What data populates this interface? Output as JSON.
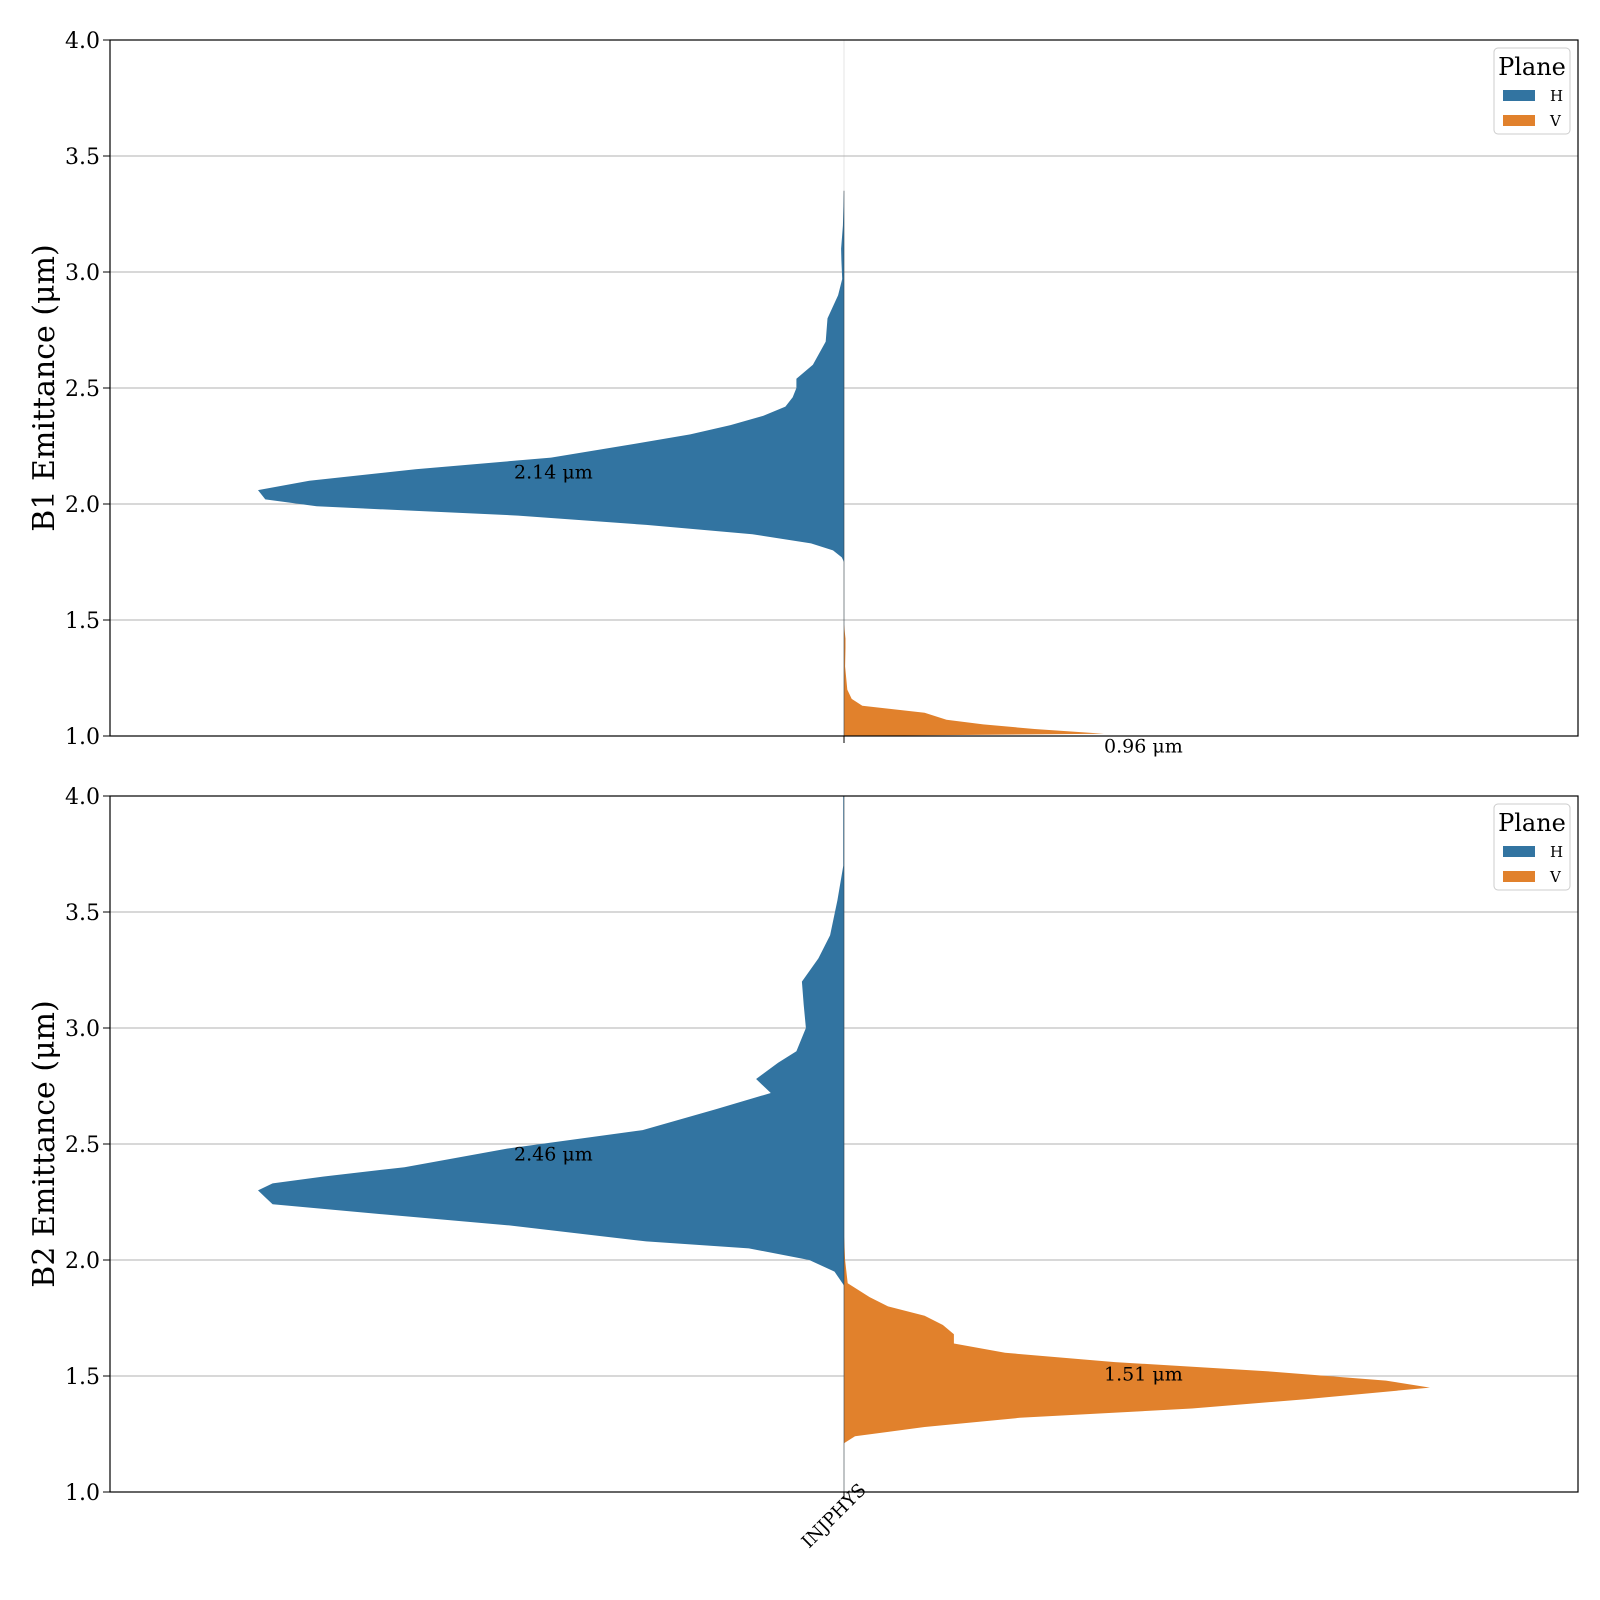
{
  "colors": {
    "H": "#3274a1",
    "V": "#e1812c",
    "grid": "#b0b0b0",
    "frame": "#000000"
  },
  "chart_data": [
    {
      "type": "violin",
      "split": true,
      "ylabel": "B1 Emittance (μm)",
      "ylim": [
        1.0,
        4.0
      ],
      "yticks": [
        "1.0",
        "1.5",
        "2.0",
        "2.5",
        "3.0",
        "3.5",
        "4.0"
      ],
      "category": "INJPHYS",
      "grid": "horizontal",
      "legend": {
        "title": "Plane",
        "placement": "top-right",
        "entries": [
          "H",
          "V"
        ]
      },
      "series": [
        {
          "name": "H",
          "side": "left",
          "profile": [
            [
              1.75,
              0.0
            ],
            [
              1.77,
              0.006
            ],
            [
              1.8,
              0.03
            ],
            [
              1.83,
              0.09
            ],
            [
              1.87,
              0.25
            ],
            [
              1.91,
              0.54
            ],
            [
              1.95,
              0.89
            ],
            [
              1.99,
              1.44
            ],
            [
              2.02,
              1.58
            ],
            [
              2.06,
              1.6
            ],
            [
              2.1,
              1.46
            ],
            [
              2.15,
              1.17
            ],
            [
              2.2,
              0.8
            ],
            [
              2.26,
              0.57
            ],
            [
              2.3,
              0.42
            ],
            [
              2.34,
              0.31
            ],
            [
              2.38,
              0.22
            ],
            [
              2.42,
              0.16
            ],
            [
              2.46,
              0.14
            ],
            [
              2.5,
              0.13
            ],
            [
              2.54,
              0.13
            ],
            [
              2.6,
              0.085
            ],
            [
              2.7,
              0.05
            ],
            [
              2.8,
              0.045
            ],
            [
              2.9,
              0.016
            ],
            [
              2.97,
              0.005
            ],
            [
              3.05,
              0.007
            ],
            [
              3.1,
              0.008
            ],
            [
              3.2,
              0.003
            ],
            [
              3.35,
              0.0
            ]
          ],
          "median_label": "2.14 μm",
          "median": 2.14
        },
        {
          "name": "V",
          "side": "right",
          "profile": [
            [
              1.0,
              0.0
            ],
            [
              1.01,
              0.71
            ],
            [
              1.03,
              0.52
            ],
            [
              1.05,
              0.38
            ],
            [
              1.07,
              0.28
            ],
            [
              1.1,
              0.22
            ],
            [
              1.13,
              0.05
            ],
            [
              1.16,
              0.021
            ],
            [
              1.2,
              0.009
            ],
            [
              1.3,
              0.003
            ],
            [
              1.38,
              0.004
            ],
            [
              1.42,
              0.004
            ],
            [
              1.48,
              0.0
            ]
          ],
          "median_label": "0.96 μm",
          "median": 0.96
        }
      ]
    },
    {
      "type": "violin",
      "split": true,
      "ylabel": "B2 Emittance (μm)",
      "ylim": [
        1.0,
        4.0
      ],
      "yticks": [
        "1.0",
        "1.5",
        "2.0",
        "2.5",
        "3.0",
        "3.5",
        "4.0"
      ],
      "category": "INJPHYS",
      "grid": "horizontal",
      "legend": {
        "title": "Plane",
        "placement": "top-right",
        "entries": [
          "H",
          "V"
        ]
      },
      "series": [
        {
          "name": "H",
          "side": "left",
          "profile": [
            [
              1.89,
              0.0
            ],
            [
              1.95,
              0.026
            ],
            [
              2.0,
              0.095
            ],
            [
              2.05,
              0.26
            ],
            [
              2.08,
              0.54
            ],
            [
              2.15,
              0.92
            ],
            [
              2.2,
              1.28
            ],
            [
              2.24,
              1.56
            ],
            [
              2.27,
              1.58
            ],
            [
              2.3,
              1.6
            ],
            [
              2.33,
              1.56
            ],
            [
              2.36,
              1.42
            ],
            [
              2.4,
              1.2
            ],
            [
              2.48,
              0.92
            ],
            [
              2.56,
              0.55
            ],
            [
              2.65,
              0.35
            ],
            [
              2.72,
              0.2
            ],
            [
              2.78,
              0.24
            ],
            [
              2.85,
              0.18
            ],
            [
              2.9,
              0.13
            ],
            [
              3.0,
              0.104
            ],
            [
              3.1,
              0.11
            ],
            [
              3.2,
              0.115
            ],
            [
              3.3,
              0.07
            ],
            [
              3.4,
              0.038
            ],
            [
              3.55,
              0.018
            ],
            [
              3.7,
              0.002
            ],
            [
              3.85,
              0.002
            ],
            [
              4.0,
              0.002
            ]
          ],
          "median_label": "2.46 μm",
          "median": 2.46
        },
        {
          "name": "V",
          "side": "right",
          "profile": [
            [
              1.21,
              0.0
            ],
            [
              1.24,
              0.03
            ],
            [
              1.28,
              0.22
            ],
            [
              1.32,
              0.48
            ],
            [
              1.36,
              0.95
            ],
            [
              1.4,
              1.26
            ],
            [
              1.45,
              1.6
            ],
            [
              1.48,
              1.48
            ],
            [
              1.52,
              1.16
            ],
            [
              1.56,
              0.74
            ],
            [
              1.6,
              0.44
            ],
            [
              1.64,
              0.3
            ],
            [
              1.68,
              0.3
            ],
            [
              1.72,
              0.27
            ],
            [
              1.76,
              0.22
            ],
            [
              1.8,
              0.12
            ],
            [
              1.84,
              0.07
            ],
            [
              1.9,
              0.01
            ],
            [
              2.0,
              0.003
            ],
            [
              2.1,
              0.0
            ]
          ],
          "median_label": "1.51 μm",
          "median": 1.51
        }
      ]
    }
  ]
}
